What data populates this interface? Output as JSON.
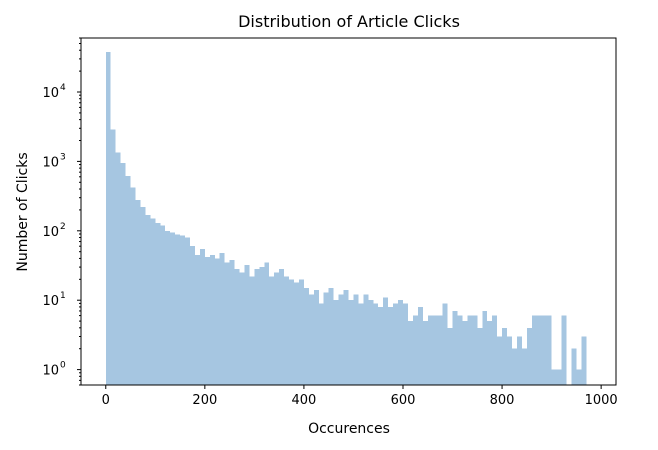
{
  "chart_data": {
    "type": "bar",
    "subtype": "histogram",
    "title": "Distribution of Article Clicks",
    "xlabel": "Occurences",
    "ylabel": "Number of Clicks",
    "xlim": [
      -50,
      1030
    ],
    "ylim": [
      0.6,
      60000
    ],
    "y_scale": "log",
    "grid": false,
    "bar_color": "#a6c6e1",
    "x_ticks": [
      {
        "value": 0,
        "label": "0"
      },
      {
        "value": 200,
        "label": "200"
      },
      {
        "value": 400,
        "label": "400"
      },
      {
        "value": 600,
        "label": "600"
      },
      {
        "value": 800,
        "label": "800"
      },
      {
        "value": 1000,
        "label": "1000"
      }
    ],
    "y_ticks": [
      {
        "value": 1,
        "base": "10",
        "exp": "0"
      },
      {
        "value": 10,
        "base": "10",
        "exp": "1"
      },
      {
        "value": 100,
        "base": "10",
        "exp": "2"
      },
      {
        "value": 1000,
        "base": "10",
        "exp": "3"
      },
      {
        "value": 10000,
        "base": "10",
        "exp": "4"
      }
    ],
    "bin_start": 0,
    "bin_width": 10,
    "values": [
      38000,
      2900,
      1350,
      950,
      620,
      420,
      280,
      220,
      170,
      150,
      130,
      120,
      100,
      95,
      88,
      85,
      80,
      60,
      45,
      55,
      42,
      45,
      40,
      48,
      35,
      38,
      28,
      25,
      32,
      22,
      28,
      30,
      35,
      22,
      25,
      28,
      22,
      20,
      18,
      20,
      15,
      12,
      14,
      9,
      13,
      15,
      10,
      12,
      14,
      10,
      12,
      9,
      12,
      10,
      9,
      8,
      11,
      8,
      9,
      10,
      9,
      5,
      6,
      8,
      5,
      6,
      6,
      6,
      9,
      4,
      7,
      6,
      5,
      6,
      6,
      4,
      7,
      5,
      6,
      3,
      4,
      3,
      2,
      3,
      2,
      4,
      6,
      6,
      6,
      6,
      1,
      1,
      6,
      0,
      2,
      1,
      3,
      0,
      0,
      0
    ]
  }
}
